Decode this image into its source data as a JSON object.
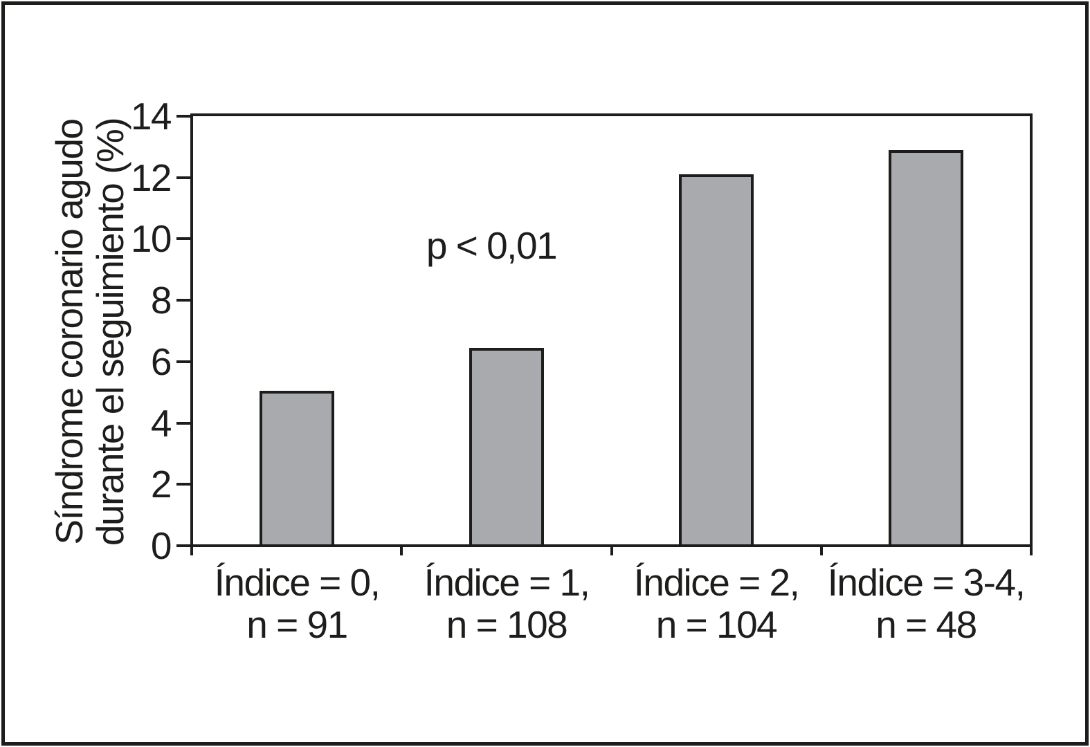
{
  "chart_data": {
    "type": "bar",
    "title": "",
    "xlabel": "",
    "ylabel": "Síndrome coronario agudo\ndurante el seguimiento (%)",
    "categories": [
      "Índice = 0,\nn = 91",
      "Índice = 1,\nn = 108",
      "Índice = 2,\nn = 104",
      "Índice = 3-4,\nn = 48"
    ],
    "values": [
      5.0,
      6.4,
      12.05,
      12.85
    ],
    "ylim": [
      0,
      14
    ],
    "yticks": [
      0,
      2,
      4,
      6,
      8,
      10,
      12,
      14
    ],
    "annotation": "p < 0,01",
    "grid": false,
    "legend": "none",
    "bar_fill_color": "#a8aaad",
    "line_color": "#1d1d1b",
    "background_color": "#ffffff"
  }
}
